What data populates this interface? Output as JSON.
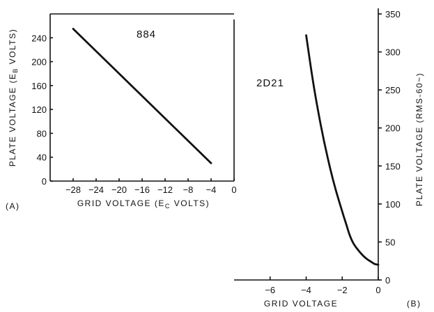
{
  "chart_data": [
    {
      "type": "line",
      "panel_label": "(A)",
      "title": "884",
      "xlabel": "GRID VOLTAGE (E",
      "xlabel_sub": "C",
      "xlabel_tail": " VOLTS)",
      "ylabel": "PLATE VOLTAGE (E",
      "ylabel_sub": "B",
      "ylabel_tail": " VOLTS)",
      "xlim": [
        -32,
        0
      ],
      "ylim": [
        0,
        280
      ],
      "x_ticks": [
        -28,
        -24,
        -20,
        -16,
        -12,
        -8,
        -4,
        0
      ],
      "y_ticks": [
        0,
        40,
        80,
        120,
        160,
        200,
        240
      ],
      "grid": false,
      "series": [
        {
          "x": [
            -28,
            -4
          ],
          "y": [
            255,
            30
          ]
        }
      ]
    },
    {
      "type": "line",
      "panel_label": "(B)",
      "title": "2D21",
      "xlabel": "GRID VOLTAGE",
      "ylabel": "PLATE VOLTAGE (RMS-60~)",
      "xlim": [
        -8,
        0
      ],
      "ylim": [
        0,
        350
      ],
      "x_ticks": [
        -6,
        -4,
        -2,
        0
      ],
      "y_ticks": [
        0,
        50,
        100,
        150,
        200,
        250,
        300,
        350
      ],
      "grid": false,
      "series": [
        {
          "x": [
            -4.0,
            -3.6,
            -3.2,
            -2.8,
            -2.4,
            -2.0,
            -1.8,
            -1.6,
            -1.4,
            -1.2,
            -1.0,
            -0.8,
            -0.6,
            -0.4,
            -0.2,
            0.0
          ],
          "y": [
            322,
            258,
            205,
            160,
            122,
            90,
            75,
            60,
            49,
            42,
            36,
            31,
            27,
            24,
            21,
            20
          ]
        }
      ]
    }
  ]
}
